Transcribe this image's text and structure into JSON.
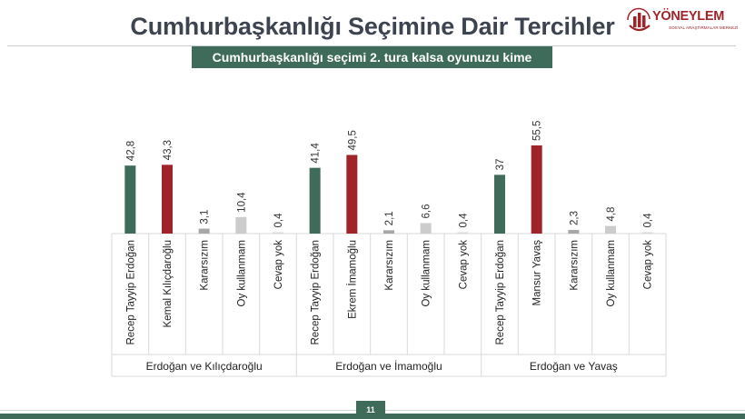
{
  "header": {
    "title": "Cumhurbaşkanlığı Seçimine Dair Tercihler",
    "subtitle": "Cumhurbaşkanlığı seçimi 2. tura kalsa oyunuzu kime"
  },
  "logo": {
    "name": "YÖNEYLEM",
    "tagline": "SOSYAL ARAŞTIRMALAR MERKEZİ"
  },
  "colors": {
    "green": "#3f6b5a",
    "red": "#a0232a",
    "gray_dark": "#a7a7a7",
    "gray_light": "#cccccc",
    "gray_lighter": "#d9d9d9"
  },
  "footer": {
    "page_number": "11"
  },
  "chart_data": {
    "type": "bar",
    "ylim": [
      0,
      60
    ],
    "grid": false,
    "groups": [
      {
        "name": "Erdoğan ve Kılıçdaroğlu",
        "categories": [
          "Recep Tayyip Erdoğan",
          "Kemal Kılıçdaroğlu",
          "Kararsızım",
          "Oy kullanmam",
          "Cevap yok"
        ],
        "values": [
          42.8,
          43.3,
          3.1,
          10.4,
          0.4
        ],
        "labels": [
          "42,8",
          "43,3",
          "3,1",
          "10,4",
          "0,4"
        ],
        "colors": [
          "#3f6b5a",
          "#a0232a",
          "#a7a7a7",
          "#cccccc",
          "#d9d9d9"
        ]
      },
      {
        "name": "Erdoğan ve İmamoğlu",
        "categories": [
          "Recep Tayyip Erdoğan",
          "Ekrem İmamoğlu",
          "Kararsızım",
          "Oy kullanmam",
          "Cevap yok"
        ],
        "values": [
          41.4,
          49.5,
          2.1,
          6.6,
          0.4
        ],
        "labels": [
          "41,4",
          "49,5",
          "2,1",
          "6,6",
          "0,4"
        ],
        "colors": [
          "#3f6b5a",
          "#a0232a",
          "#a7a7a7",
          "#cccccc",
          "#d9d9d9"
        ]
      },
      {
        "name": "Erdoğan ve Yavaş",
        "categories": [
          "Recep Tayyip Erdoğan",
          "Mansur Yavaş",
          "Kararsızım",
          "Oy kullanmam",
          "Cevap yok"
        ],
        "values": [
          37,
          55.5,
          2.3,
          4.8,
          0.4
        ],
        "labels": [
          "37",
          "55,5",
          "2,3",
          "4,8",
          "0,4"
        ],
        "colors": [
          "#3f6b5a",
          "#a0232a",
          "#a7a7a7",
          "#cccccc",
          "#d9d9d9"
        ]
      }
    ]
  }
}
